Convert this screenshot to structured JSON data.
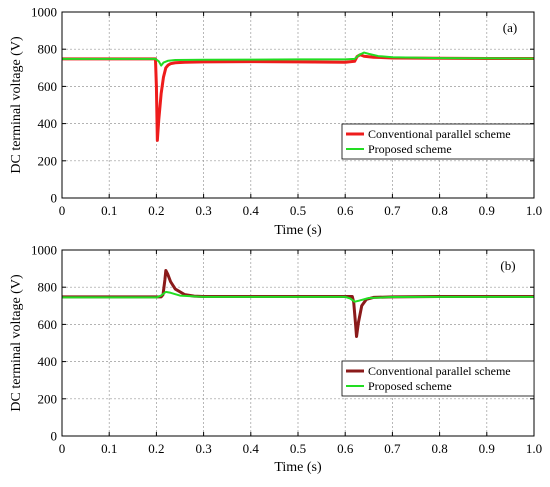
{
  "chart_data": [
    {
      "type": "line",
      "panel_label": "(a)",
      "xlabel": "Time (s)",
      "ylabel": "DC terminal voltage (V)",
      "xlim": [
        0,
        1.0
      ],
      "ylim": [
        0,
        1000
      ],
      "xticks": [
        "0",
        "0.1",
        "0.2",
        "0.3",
        "0.4",
        "0.5",
        "0.6",
        "0.7",
        "0.8",
        "0.9",
        "1.0"
      ],
      "yticks": [
        "0",
        "200",
        "400",
        "600",
        "800",
        "1000"
      ],
      "grid": true,
      "legend_position": "lower-right",
      "series": [
        {
          "name": "Conventional parallel scheme",
          "color": "#ee1c1c",
          "x": [
            0,
            0.198,
            0.2,
            0.202,
            0.205,
            0.21,
            0.215,
            0.22,
            0.225,
            0.23,
            0.24,
            0.26,
            0.3,
            0.4,
            0.5,
            0.6,
            0.62,
            0.625,
            0.628,
            0.632,
            0.64,
            0.66,
            0.7,
            0.8,
            0.9,
            1.0
          ],
          "y": [
            748,
            748,
            600,
            310,
            420,
            560,
            650,
            700,
            715,
            722,
            727,
            730,
            732,
            733,
            732,
            730,
            735,
            760,
            765,
            770,
            762,
            757,
            753,
            751,
            750,
            750
          ]
        },
        {
          "name": "Proposed scheme",
          "color": "#22dd22",
          "x": [
            0,
            0.198,
            0.205,
            0.21,
            0.215,
            0.225,
            0.24,
            0.3,
            0.4,
            0.5,
            0.6,
            0.62,
            0.63,
            0.64,
            0.65,
            0.67,
            0.7,
            0.8,
            1.0
          ],
          "y": [
            748,
            748,
            735,
            712,
            728,
            738,
            742,
            743,
            744,
            745,
            745,
            748,
            770,
            782,
            775,
            763,
            757,
            752,
            750
          ]
        }
      ]
    },
    {
      "type": "line",
      "panel_label": "(b)",
      "xlabel": "Time (s)",
      "ylabel": "DC terminal voltage (V)",
      "xlim": [
        0,
        1.0
      ],
      "ylim": [
        0,
        1000
      ],
      "xticks": [
        "0",
        "0.1",
        "0.2",
        "0.3",
        "0.4",
        "0.5",
        "0.6",
        "0.7",
        "0.8",
        "0.9",
        "1.0"
      ],
      "yticks": [
        "0",
        "200",
        "400",
        "600",
        "800",
        "1000"
      ],
      "grid": true,
      "legend_position": "lower-right",
      "series": [
        {
          "name": "Conventional parallel scheme",
          "color": "#8b1a1a",
          "x": [
            0,
            0.21,
            0.214,
            0.218,
            0.22,
            0.224,
            0.23,
            0.24,
            0.26,
            0.28,
            0.3,
            0.4,
            0.5,
            0.6,
            0.615,
            0.618,
            0.622,
            0.624,
            0.628,
            0.635,
            0.645,
            0.66,
            0.7,
            0.8,
            0.9,
            1.0
          ],
          "y": [
            748,
            748,
            760,
            840,
            890,
            870,
            830,
            790,
            760,
            752,
            750,
            750,
            750,
            750,
            750,
            720,
            600,
            535,
            610,
            700,
            735,
            745,
            748,
            750,
            750,
            750
          ]
        },
        {
          "name": "Proposed scheme",
          "color": "#22dd22",
          "x": [
            0,
            0.2,
            0.21,
            0.22,
            0.23,
            0.25,
            0.3,
            0.4,
            0.5,
            0.6,
            0.61,
            0.62,
            0.63,
            0.65,
            0.7,
            0.8,
            1.0
          ],
          "y": [
            745,
            745,
            755,
            775,
            770,
            755,
            748,
            748,
            748,
            748,
            740,
            722,
            728,
            742,
            747,
            748,
            748
          ]
        }
      ]
    }
  ]
}
